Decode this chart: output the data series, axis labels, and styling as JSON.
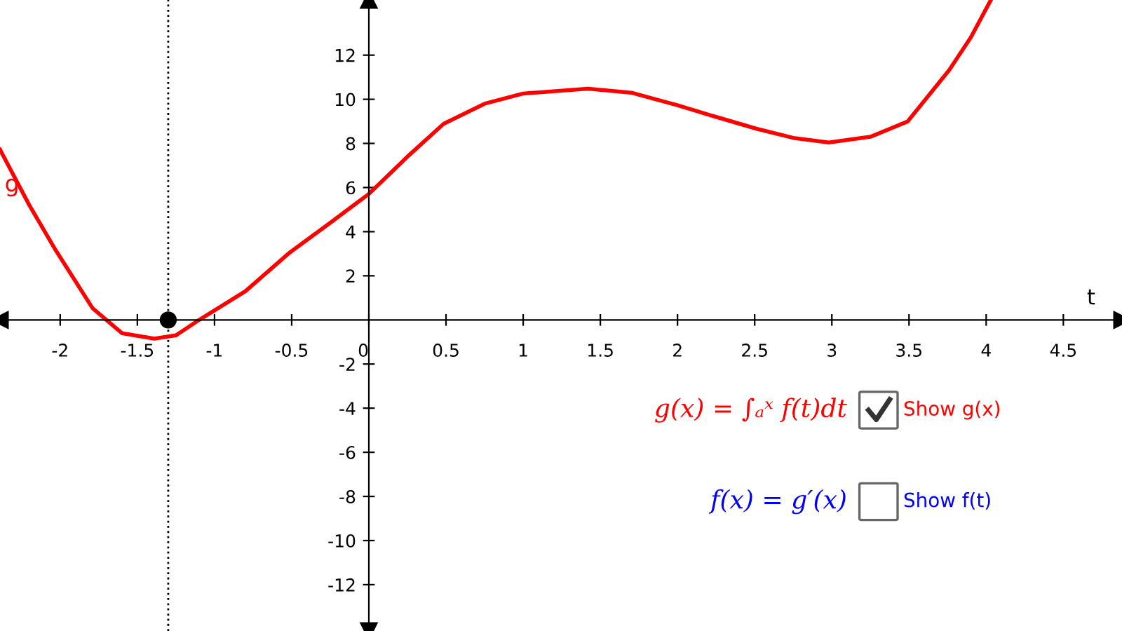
{
  "chart_data": {
    "type": "line",
    "xlabel": "t",
    "xlim": [
      -2.39,
      4.88
    ],
    "ylim": [
      -14.1,
      14.5
    ],
    "xticks": [
      -2,
      -1.5,
      -1,
      -0.5,
      0,
      0.5,
      1,
      1.5,
      2,
      2.5,
      3,
      3.5,
      4,
      4.5
    ],
    "yticks": [
      -12,
      -10,
      -8,
      -6,
      -4,
      -2,
      2,
      4,
      6,
      8,
      10,
      12
    ],
    "grid": false,
    "legend": false,
    "series": [
      {
        "name": "g",
        "color": "#ff0000",
        "x": [
          -2.39,
          -2.2,
          -2.03,
          -1.79,
          -1.6,
          -1.39,
          -1.25,
          -1.1,
          -0.8,
          -0.51,
          -0.25,
          0,
          0.25,
          0.485,
          0.75,
          1,
          1.42,
          1.7,
          2.0,
          2.25,
          2.51,
          2.75,
          2.98,
          3.25,
          3.49,
          3.76,
          3.9,
          4.03
        ],
        "values": [
          7.72,
          5.2,
          3.17,
          0.53,
          -0.6,
          -0.85,
          -0.7,
          0,
          1.3,
          3.07,
          4.4,
          5.71,
          7.4,
          8.89,
          9.8,
          10.26,
          10.48,
          10.3,
          9.73,
          9.2,
          8.67,
          8.25,
          8.04,
          8.3,
          8.99,
          11.32,
          12.8,
          14.5
        ]
      },
      {
        "type": "scatter",
        "color": "#000000",
        "marker": "circle",
        "x": [
          -1.3
        ],
        "values": [
          0
        ]
      }
    ],
    "ref_lines": [
      {
        "axis": "x",
        "value": -1.3,
        "color": "#000000",
        "line_style": "dotted"
      }
    ],
    "annotations": [
      "g(x) = ∫ₐˣ f(t)dt",
      "Show g(x)",
      "f(x) = g′(x)",
      "Show f(t)"
    ]
  }
}
